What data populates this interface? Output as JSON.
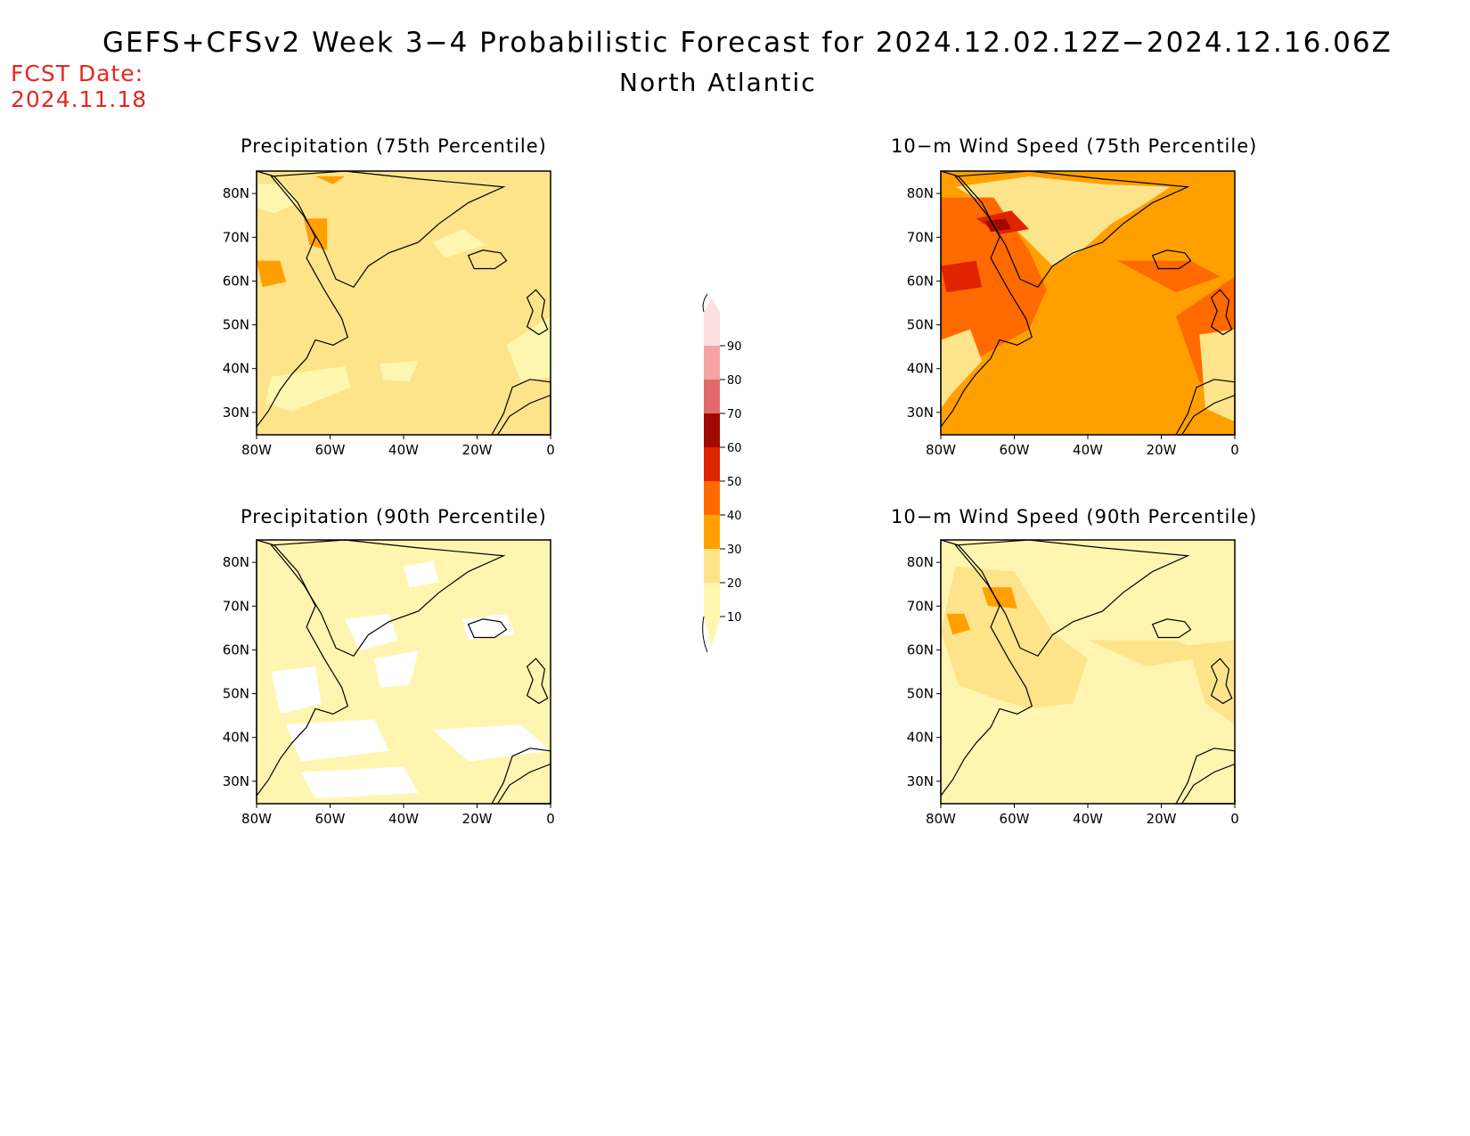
{
  "header": {
    "title": "GEFS+CFSv2 Week 3−4 Probabilistic Forecast for 2024.12.02.12Z−2024.12.16.06Z",
    "region": "North Atlantic",
    "fcst_label": "FCST Date:",
    "fcst_date": "2024.11.18"
  },
  "axes": {
    "lon_labels": [
      "80W",
      "60W",
      "40W",
      "20W",
      "0"
    ],
    "lat_labels": [
      "80N",
      "70N",
      "60N",
      "50N",
      "40N",
      "30N"
    ]
  },
  "panels": [
    {
      "id": "precip75",
      "title": "Precipitation (75th Percentile)",
      "base_color": "#fde48a",
      "icon": "precipitation-map"
    },
    {
      "id": "wind75",
      "title": "10−m Wind Speed (75th Percentile)",
      "base_color": "#ffa000",
      "icon": "wind-map"
    },
    {
      "id": "precip90",
      "title": "Precipitation (90th Percentile)",
      "base_color": "#fff5b0",
      "icon": "precipitation-map"
    },
    {
      "id": "wind90",
      "title": "10−m Wind Speed (90th Percentile)",
      "base_color": "#fff5b0",
      "icon": "wind-map"
    }
  ],
  "colorbar": {
    "levels": [
      "10",
      "20",
      "30",
      "40",
      "50",
      "60",
      "70",
      "80",
      "90"
    ],
    "colors": [
      "#fff7b0",
      "#fde48a",
      "#ffa000",
      "#ff6a00",
      "#e02400",
      "#a00a00",
      "#e06a6a",
      "#f5a3a3",
      "#fde0e0"
    ],
    "land_color": "#ffffff",
    "coast_color": "#000000"
  }
}
